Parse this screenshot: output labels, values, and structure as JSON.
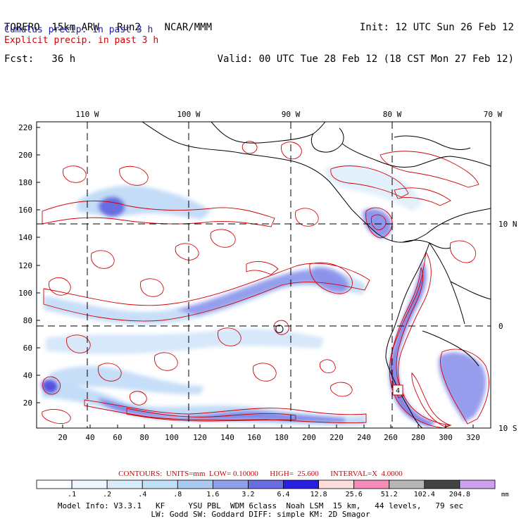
{
  "header": {
    "line1_left": "TORERO  15km ARW   Run2    NCAR/MMM",
    "line1_right": "Init: 12 UTC Sun 26 Feb 12",
    "line2_left": "Fcst:   36 h",
    "line2_right": "Valid: 00 UTC Tue 28 Feb 12 (18 CST Mon 27 Feb 12)",
    "cumulus": "Cumulus precip. in past 3 h",
    "explicit": "Explicit precip. in past 3 h",
    "cumulus_color": "#1a1ab5",
    "explicit_color": "#d40000"
  },
  "map": {
    "lon_labels": [
      "110 W",
      "100 W",
      "90 W",
      "80 W",
      "70 W"
    ],
    "lat_labels": [
      "10 N",
      "0",
      "10 S"
    ],
    "y_ticks": [
      "220",
      "200",
      "180",
      "160",
      "140",
      "120",
      "100",
      "80",
      "60",
      "40",
      "20"
    ],
    "x_ticks": [
      "20",
      "40",
      "60",
      "80",
      "100",
      "120",
      "140",
      "160",
      "180",
      "200",
      "220",
      "240",
      "260",
      "280",
      "300",
      "320"
    ],
    "station_marker": "4"
  },
  "contours": {
    "caption": "CONTOURS:  UNITS=mm  LOW= 0.10000      HIGH=  25.600      INTERVAL=X  4.0000"
  },
  "colorbar": {
    "labels": [
      ".1",
      ".2",
      ".4",
      ".8",
      "1.6",
      "3.2",
      "6.4",
      "12.8",
      "25.6",
      "51.2",
      "102.4",
      "204.8"
    ],
    "units": "mm",
    "colors": [
      "#ffffff",
      "#eef6ff",
      "#d8ecfb",
      "#c0e0f7",
      "#a9c8f2",
      "#8ea0ea",
      "#6b6ee2",
      "#2a1ee0",
      "#ffdcdc",
      "#f58db8",
      "#b6b6b6",
      "#444444",
      "#cfa0ee"
    ]
  },
  "footer": {
    "line1": "Model Info: V3.3.1   KF     YSU PBL  WDM 6class  Noah LSM  15 km,   44 levels,   79 sec",
    "line2": "LW: Godd SW: Goddard DIFF: simple KM: 2D Smagor"
  }
}
